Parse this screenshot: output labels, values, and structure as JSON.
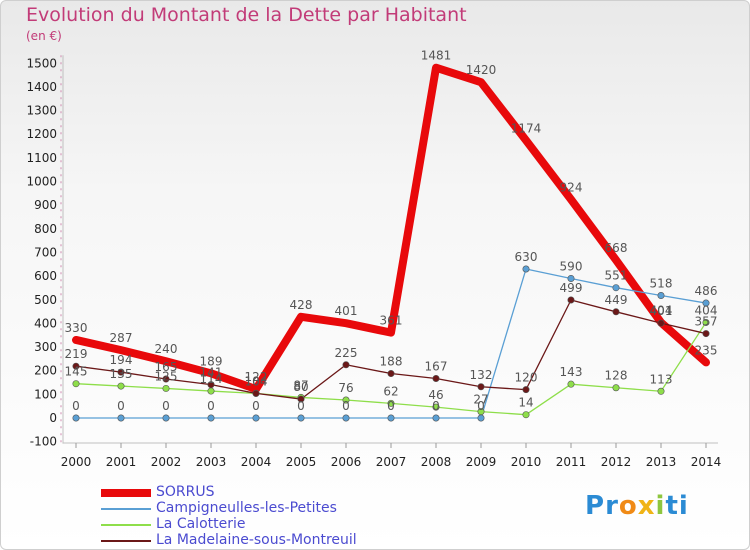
{
  "chart_data": {
    "type": "line",
    "title": "Evolution du Montant de la Dette par Habitant",
    "subtitle": "(en €)",
    "x": [
      "2000",
      "2001",
      "2002",
      "2003",
      "2004",
      "2005",
      "2006",
      "2007",
      "2008",
      "2009",
      "2010",
      "2011",
      "2012",
      "2013",
      "2014"
    ],
    "ylim": [
      -100,
      1500
    ],
    "yticks": [
      -100,
      0,
      100,
      200,
      300,
      400,
      500,
      600,
      700,
      800,
      900,
      1000,
      1100,
      1200,
      1300,
      1400,
      1500
    ],
    "grid": false,
    "legend_position": "bottom-left",
    "series": [
      {
        "name": "SORRUS",
        "color": "#e8090b",
        "values": [
          330,
          287,
          240,
          189,
          122,
          428,
          401,
          361,
          1481,
          1420,
          1174,
          924,
          668,
          404,
          235
        ]
      },
      {
        "name": "Campigneulles-les-Petites",
        "color": "#5a9fd4",
        "values": [
          0,
          0,
          0,
          0,
          0,
          0,
          0,
          0,
          0,
          0,
          630,
          590,
          551,
          518,
          486
        ]
      },
      {
        "name": "La Calotterie",
        "color": "#8ede4a",
        "values": [
          145,
          135,
          125,
          114,
          104,
          87,
          76,
          62,
          46,
          27,
          14,
          143,
          128,
          113,
          404
        ]
      },
      {
        "name": "La Madelaine-sous-Montreuil",
        "color": "#6b1818",
        "values": [
          219,
          194,
          165,
          141,
          104,
          80,
          225,
          188,
          167,
          132,
          120,
          499,
          449,
          401,
          357
        ]
      }
    ]
  },
  "logo": {
    "text": "Proxiti",
    "letters": [
      "P",
      "r",
      "o",
      "x",
      "i",
      "t",
      "i"
    ],
    "colors": [
      "#2b8bd4",
      "#2b8bd4",
      "#f08a16",
      "#f0b416",
      "#8ec63f",
      "#2b8bd4",
      "#2b8bd4"
    ]
  }
}
